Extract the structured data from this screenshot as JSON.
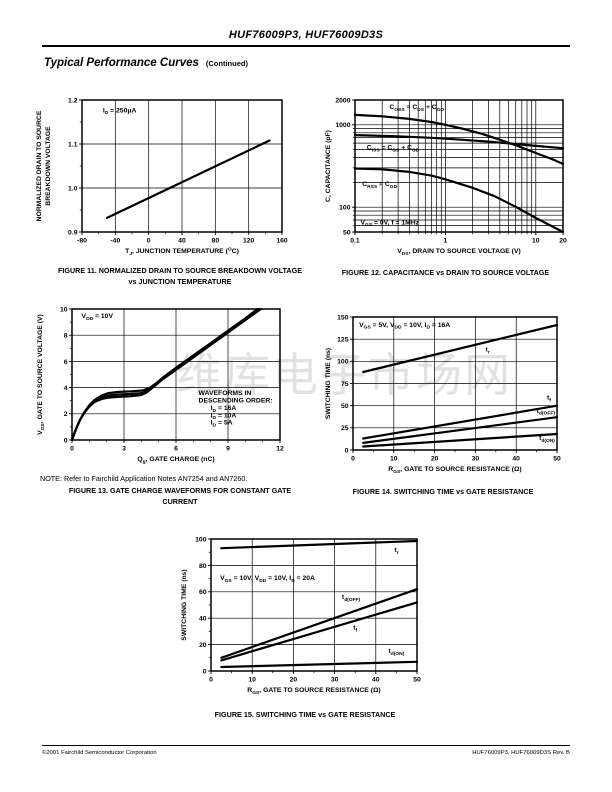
{
  "page": {
    "doc_title": "HUF76009P3, HUF76009D3S",
    "section_title": "Typical Performance Curves",
    "section_suffix": "(Continued)",
    "watermark": "维库电子市场网",
    "footer_left": "©2001 Fairchild Semiconductor Corporation",
    "footer_right": "HUF76009P3, HUF76009D3S Rev. B"
  },
  "figures": {
    "fig11": {
      "caption": "FIGURE 11.  NORMALIZED DRAIN TO SOURCE BREAKDOWN VOLTAGE vs JUNCTION TEMPERATURE"
    },
    "fig12": {
      "caption": "FIGURE 12.  CAPACITANCE vs DRAIN TO SOURCE VOLTAGE"
    },
    "fig13": {
      "note": "NOTE:  Refer to Fairchild Application Notes AN7254 and AN7260.",
      "caption": "FIGURE 13.  GATE CHARGE WAVEFORMS FOR CONSTANT GATE CURRENT"
    },
    "fig14": {
      "caption": "FIGURE 14.  SWITCHING TIME vs GATE RESISTANCE"
    },
    "fig15": {
      "caption": "FIGURE 15.  SWITCHING TIME vs GATE RESISTANCE"
    }
  },
  "chart_data": [
    {
      "id": "fig11",
      "type": "line",
      "xscale": "linear",
      "yscale": "linear",
      "xlim": [
        -80,
        160
      ],
      "ylim": [
        0.9,
        1.2
      ],
      "xticks": [
        -80,
        -40,
        0,
        40,
        80,
        120,
        160
      ],
      "yticks": [
        0.9,
        1.0,
        1.1,
        1.2
      ],
      "ytick_labels": [
        "0.9",
        "1.0",
        "1.1",
        "1.2"
      ],
      "xminor": 20,
      "yminor": 0.05,
      "xlabel": "T_{J}, JUNCTION TEMPERATURE (^{O}C)",
      "ylabel": "NORMALIZED DRAIN TO SOURCE|BREAKDOWN VOLTAGE",
      "series": [
        {
          "name": "normalized-bvdss",
          "points": [
            [
              -50,
              0.932
            ],
            [
              145,
              1.108
            ]
          ]
        }
      ],
      "texts": [
        {
          "t": "I_{D} = 250μA",
          "x": -55,
          "y": 1.172,
          "a": "start"
        }
      ]
    },
    {
      "id": "fig12",
      "type": "line",
      "xscale": "log",
      "yscale": "log",
      "xlim": [
        0.1,
        20
      ],
      "ylim": [
        50,
        2000
      ],
      "xticks": [
        0.1,
        1,
        10,
        20
      ],
      "xtick_labels": [
        "0.1",
        "1",
        "10",
        "20"
      ],
      "yticks": [
        50,
        100,
        1000,
        2000
      ],
      "ytick_labels": [
        "50",
        "100",
        "1000",
        "2000"
      ],
      "xlabel": "V_{DS}, DRAIN TO SOURCE VOLTAGE (V)",
      "ylabel": "C, CAPACITANCE (pF)",
      "series": [
        {
          "name": "coss",
          "points": [
            [
              0.1,
              1320
            ],
            [
              0.2,
              1270
            ],
            [
              0.4,
              1180
            ],
            [
              0.7,
              1080
            ],
            [
              1,
              1000
            ],
            [
              1.6,
              890
            ],
            [
              2.5,
              780
            ],
            [
              4,
              660
            ],
            [
              6,
              565
            ],
            [
              10,
              455
            ],
            [
              15,
              385
            ],
            [
              20,
              335
            ]
          ]
        },
        {
          "name": "ciss",
          "points": [
            [
              0.1,
              750
            ],
            [
              0.3,
              725
            ],
            [
              0.7,
              695
            ],
            [
              1.5,
              660
            ],
            [
              3,
              625
            ],
            [
              6,
              585
            ],
            [
              10,
              555
            ],
            [
              20,
              520
            ]
          ]
        },
        {
          "name": "crss",
          "points": [
            [
              0.1,
              295
            ],
            [
              0.2,
              288
            ],
            [
              0.4,
              268
            ],
            [
              0.7,
              242
            ],
            [
              1,
              218
            ],
            [
              2,
              172
            ],
            [
              3.5,
              136
            ],
            [
              6,
              101
            ],
            [
              10,
              74
            ],
            [
              15,
              59
            ],
            [
              20,
              50
            ]
          ]
        }
      ],
      "texts": [
        {
          "t": "C_{OSS} = C_{DS} + C_{GD}",
          "x": 0.24,
          "y": 1560,
          "a": "start"
        },
        {
          "t": "C_{ISS} = C_{GS} + C_{GD}",
          "x": 0.135,
          "y": 500,
          "a": "start"
        },
        {
          "t": "C_{RSS} = C_{GD}",
          "x": 0.12,
          "y": 180,
          "a": "start"
        },
        {
          "t": "V_{GS} = 0V, f = 1MHz",
          "x": 0.115,
          "y": 62,
          "a": "start"
        }
      ]
    },
    {
      "id": "fig13",
      "type": "line",
      "xscale": "linear",
      "yscale": "linear",
      "xlim": [
        0,
        12
      ],
      "ylim": [
        0,
        10
      ],
      "xticks": [
        0,
        3,
        6,
        9,
        12
      ],
      "yticks": [
        0,
        2,
        4,
        6,
        8,
        10
      ],
      "xminor": 1,
      "yminor": 1,
      "xlabel": "Q_{g}, GATE CHARGE (nC)",
      "ylabel": "V_{GS}, GATE TO SOURCE VOLTAGE (V)",
      "series": [
        {
          "name": "id-16a",
          "points": [
            [
              0,
              0
            ],
            [
              0.2,
              0.75
            ],
            [
              0.45,
              1.5
            ],
            [
              0.7,
              2.1
            ],
            [
              1.0,
              2.65
            ],
            [
              1.3,
              3.05
            ],
            [
              1.7,
              3.4
            ],
            [
              2.1,
              3.58
            ],
            [
              2.7,
              3.67
            ],
            [
              3.4,
              3.71
            ],
            [
              4.05,
              3.78
            ],
            [
              4.45,
              3.95
            ],
            [
              4.85,
              4.33
            ],
            [
              5.3,
              4.83
            ],
            [
              6,
              5.52
            ],
            [
              7,
              6.46
            ],
            [
              8,
              7.4
            ],
            [
              9,
              8.34
            ],
            [
              10,
              9.28
            ],
            [
              10.7,
              10
            ]
          ]
        },
        {
          "name": "id-10a",
          "points": [
            [
              0,
              0
            ],
            [
              0.2,
              0.75
            ],
            [
              0.45,
              1.5
            ],
            [
              0.7,
              2.05
            ],
            [
              1.0,
              2.6
            ],
            [
              1.3,
              2.97
            ],
            [
              1.7,
              3.25
            ],
            [
              2.1,
              3.4
            ],
            [
              2.7,
              3.47
            ],
            [
              3.4,
              3.51
            ],
            [
              4.0,
              3.58
            ],
            [
              4.35,
              3.76
            ],
            [
              4.75,
              4.18
            ],
            [
              5.25,
              4.72
            ],
            [
              6,
              5.44
            ],
            [
              7,
              6.38
            ],
            [
              8,
              7.33
            ],
            [
              9,
              8.28
            ],
            [
              10,
              9.23
            ],
            [
              10.8,
              10
            ]
          ]
        },
        {
          "name": "id-5a",
          "points": [
            [
              0,
              0
            ],
            [
              0.2,
              0.75
            ],
            [
              0.45,
              1.5
            ],
            [
              0.7,
              2.05
            ],
            [
              1.0,
              2.55
            ],
            [
              1.3,
              2.9
            ],
            [
              1.7,
              3.12
            ],
            [
              2.1,
              3.24
            ],
            [
              2.7,
              3.3
            ],
            [
              3.4,
              3.34
            ],
            [
              3.95,
              3.42
            ],
            [
              4.3,
              3.62
            ],
            [
              4.7,
              4.05
            ],
            [
              5.2,
              4.6
            ],
            [
              6,
              5.35
            ],
            [
              7,
              6.3
            ],
            [
              8,
              7.25
            ],
            [
              9,
              8.2
            ],
            [
              10,
              9.15
            ],
            [
              10.9,
              10
            ]
          ]
        }
      ],
      "texts": [
        {
          "t": "V_{DD} = 10V",
          "x": 0.55,
          "y": 9.3,
          "a": "start"
        },
        {
          "t": "WAVEFORMS IN",
          "x": 7.3,
          "y": 3.44,
          "a": "start"
        },
        {
          "t": "DESCENDING ORDER:",
          "x": 7.3,
          "y": 2.86,
          "a": "start"
        },
        {
          "t": "I_{D} = 16A",
          "x": 8.0,
          "y": 2.28,
          "a": "start"
        },
        {
          "t": "I_{D} = 10A",
          "x": 8.0,
          "y": 1.73,
          "a": "start"
        },
        {
          "t": "I_{D} = 5A",
          "x": 8.0,
          "y": 1.18,
          "a": "start"
        }
      ]
    },
    {
      "id": "fig14",
      "type": "line",
      "xscale": "linear",
      "yscale": "linear",
      "xlim": [
        0,
        50
      ],
      "ylim": [
        0,
        150
      ],
      "xticks": [
        0,
        10,
        20,
        30,
        40,
        50
      ],
      "yticks": [
        0,
        25,
        50,
        75,
        100,
        125,
        150
      ],
      "xminor": 5,
      "xlabel": "R_{GS}, GATE TO SOURCE RESISTANCE (Ω)",
      "ylabel": "SWITCHING TIME (ns)",
      "series": [
        {
          "name": "tr",
          "points": [
            [
              2.5,
              88
            ],
            [
              50,
              141
            ]
          ]
        },
        {
          "name": "tf",
          "points": [
            [
              2.5,
              13
            ],
            [
              50,
              50
            ]
          ]
        },
        {
          "name": "td-off",
          "points": [
            [
              2.5,
              8
            ],
            [
              50,
              37
            ]
          ]
        },
        {
          "name": "td-on",
          "points": [
            [
              2.5,
              4
            ],
            [
              50,
              18
            ]
          ]
        }
      ],
      "texts": [
        {
          "t": "V_{GS} = 5V, V_{DD} = 10V,  I_{D} = 16A",
          "x": 1.5,
          "y": 139,
          "a": "start"
        },
        {
          "t": "t_{r}",
          "x": 33,
          "y": 111,
          "a": "middle"
        },
        {
          "t": "t_{f}",
          "x": 48.5,
          "y": 57,
          "a": "end"
        },
        {
          "t": "t_{d(OFF)}",
          "x": 49.5,
          "y": 42,
          "a": "end"
        },
        {
          "t": "t_{d(ON)}",
          "x": 49.5,
          "y": 11,
          "a": "end"
        }
      ]
    },
    {
      "id": "fig15",
      "type": "line",
      "xscale": "linear",
      "yscale": "linear",
      "xlim": [
        0,
        50
      ],
      "ylim": [
        0,
        100
      ],
      "xticks": [
        0,
        10,
        20,
        30,
        40,
        50
      ],
      "yticks": [
        0,
        20,
        40,
        60,
        80,
        100
      ],
      "xminor": 5,
      "yminor": 10,
      "xlabel": "R_{GS}, GATE TO SOURCE RESISTANCE (Ω)",
      "ylabel": "SWITCHING TIME (ns)",
      "series": [
        {
          "name": "tr",
          "points": [
            [
              2.5,
              93
            ],
            [
              50,
              98.5
            ]
          ]
        },
        {
          "name": "td-off",
          "points": [
            [
              2.5,
              10
            ],
            [
              50,
              62
            ]
          ]
        },
        {
          "name": "tf",
          "points": [
            [
              2.5,
              8
            ],
            [
              50,
              52
            ]
          ]
        },
        {
          "name": "td-on",
          "points": [
            [
              2.5,
              3
            ],
            [
              50,
              7
            ]
          ]
        }
      ],
      "texts": [
        {
          "t": "V_{GS} = 10V, V_{DD} = 10V,  I_{D} = 20A",
          "x": 2.2,
          "y": 69,
          "a": "start"
        },
        {
          "t": "t_{r}",
          "x": 45,
          "y": 90,
          "a": "middle"
        },
        {
          "t": "t_{d(OFF)}",
          "x": 34,
          "y": 54.5,
          "a": "middle"
        },
        {
          "t": "t_{f}",
          "x": 35,
          "y": 31.5,
          "a": "middle"
        },
        {
          "t": "t_{d(ON)}",
          "x": 45,
          "y": 13.5,
          "a": "middle"
        }
      ]
    }
  ]
}
